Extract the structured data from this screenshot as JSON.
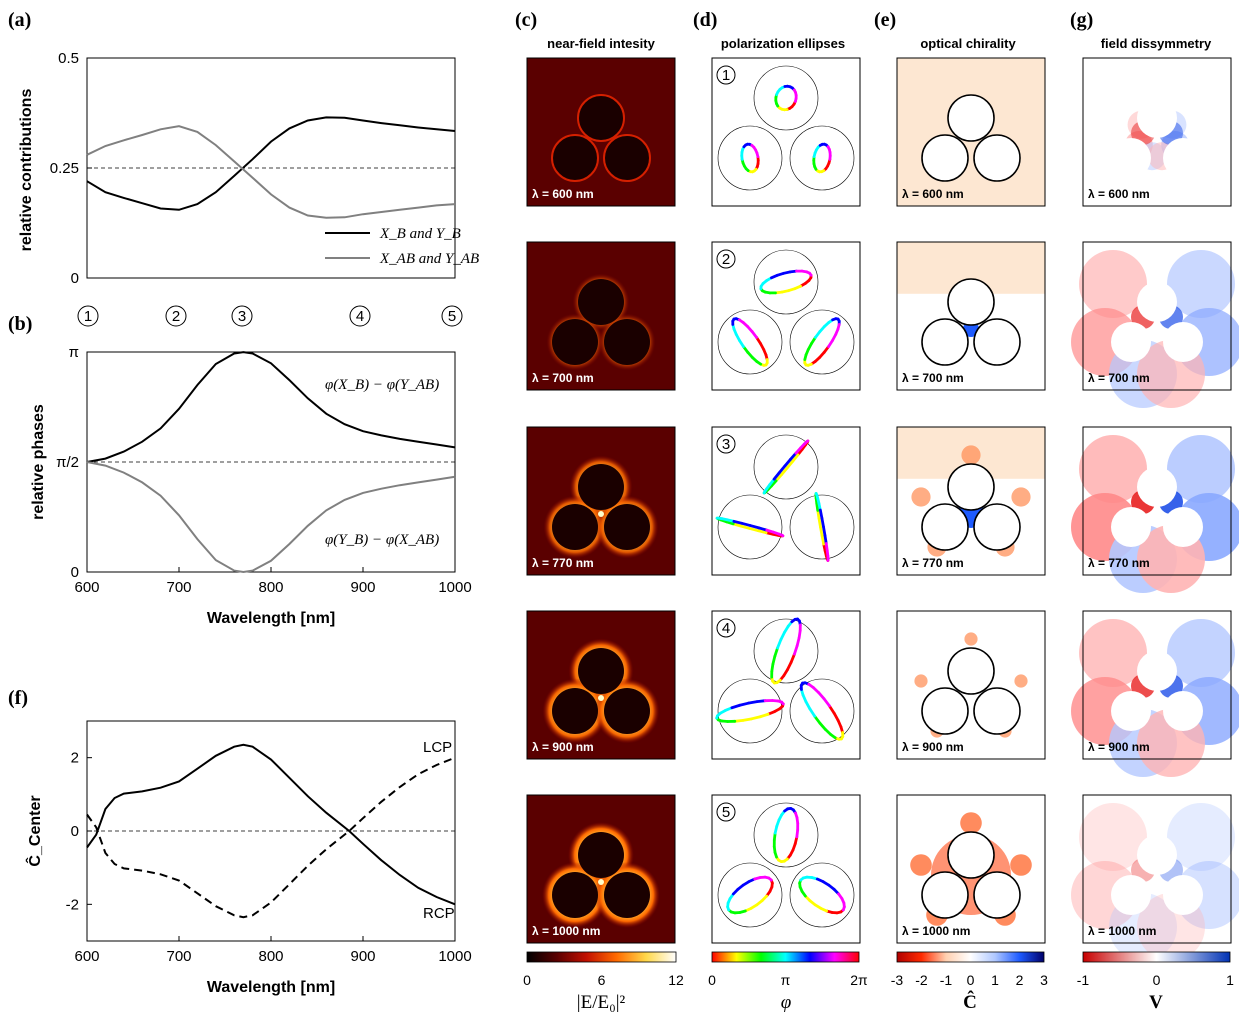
{
  "panel_labels": [
    "(a)",
    "(b)",
    "(c)",
    "(d)",
    "(e)",
    "(g)",
    "(f)"
  ],
  "column_titles": {
    "c": "near-field intesity",
    "d": "polarization ellipses",
    "e": "optical chirality",
    "g": "field dissymmetry"
  },
  "row_markers": [
    "1",
    "2",
    "3",
    "4",
    "5"
  ],
  "wavelength_labels": [
    "λ = 600 nm",
    "λ = 700 nm",
    "λ = 770 nm",
    "λ = 900 nm",
    "λ = 1000 nm"
  ],
  "colorbars": {
    "c": {
      "ticks": [
        "0",
        "6",
        "12"
      ],
      "label": "|E/E₀|²",
      "colors": [
        "#000000",
        "#5a0000",
        "#c21000",
        "#ff6a00",
        "#ffd84a",
        "#ffffff"
      ]
    },
    "d": {
      "ticks": [
        "0",
        "π",
        "2π"
      ],
      "label": "φ",
      "colors": [
        "#ff0000",
        "#ffff00",
        "#00ff00",
        "#00ffff",
        "#0000ff",
        "#ff00ff",
        "#ff0000"
      ]
    },
    "e": {
      "ticks": [
        "-3",
        "-2",
        "-1",
        "0",
        "1",
        "2",
        "3"
      ],
      "label": "Ĉ",
      "colors": [
        "#b00000",
        "#ff2a00",
        "#ffd0b0",
        "#ffffff",
        "#b0c8ff",
        "#1e5bff",
        "#00006a"
      ]
    },
    "g": {
      "ticks": [
        "-1",
        "0",
        "1"
      ],
      "label": "V",
      "colors": [
        "#c80000",
        "#ffffff",
        "#0032b4"
      ]
    }
  },
  "chart_data": [
    {
      "id": "a",
      "type": "line",
      "ylabel": "relative contributions",
      "xlim": [
        600,
        1000
      ],
      "ylim": [
        0,
        0.5
      ],
      "yticks": [
        "0",
        "0.25",
        "0.5"
      ],
      "reference_line": 0.25,
      "x": [
        600,
        620,
        640,
        660,
        680,
        700,
        720,
        740,
        760,
        780,
        800,
        820,
        840,
        860,
        880,
        900,
        920,
        940,
        960,
        980,
        1000
      ],
      "series": [
        {
          "name": "X_B and Y_B",
          "color": "#000000",
          "values": [
            0.22,
            0.195,
            0.182,
            0.17,
            0.158,
            0.155,
            0.168,
            0.195,
            0.232,
            0.27,
            0.31,
            0.34,
            0.358,
            0.365,
            0.364,
            0.358,
            0.352,
            0.347,
            0.342,
            0.338,
            0.334
          ]
        },
        {
          "name": "X_AB and Y_AB",
          "color": "#808080",
          "values": [
            0.28,
            0.3,
            0.313,
            0.325,
            0.338,
            0.345,
            0.332,
            0.302,
            0.265,
            0.228,
            0.19,
            0.16,
            0.142,
            0.137,
            0.138,
            0.145,
            0.15,
            0.155,
            0.16,
            0.165,
            0.168
          ]
        }
      ],
      "legend": [
        "X_B and Y_B",
        "X_AB and Y_AB"
      ],
      "markers": [
        {
          "label": "1",
          "x": 600
        },
        {
          "label": "2",
          "x": 700
        },
        {
          "label": "3",
          "x": 770
        },
        {
          "label": "4",
          "x": 900
        },
        {
          "label": "5",
          "x": 1000
        }
      ]
    },
    {
      "id": "b",
      "type": "line",
      "ylabel": "relative phases",
      "xlabel": "Wavelength [nm]",
      "xlim": [
        600,
        1000
      ],
      "xticks": [
        "600",
        "700",
        "800",
        "900",
        "1000"
      ],
      "ylim": [
        0,
        3.1416
      ],
      "yticks": [
        "0",
        "π/2",
        "π"
      ],
      "reference_line": 1.5708,
      "x": [
        600,
        620,
        640,
        660,
        680,
        700,
        720,
        740,
        760,
        770,
        780,
        800,
        820,
        840,
        860,
        880,
        900,
        920,
        940,
        960,
        980,
        1000
      ],
      "series": [
        {
          "name": "φ(X_B) − φ(Y_AB)",
          "color": "#000000",
          "values": [
            1.571,
            1.62,
            1.72,
            1.86,
            2.05,
            2.33,
            2.67,
            2.97,
            3.12,
            3.14,
            3.12,
            2.98,
            2.74,
            2.48,
            2.26,
            2.11,
            2.01,
            1.95,
            1.9,
            1.86,
            1.82,
            1.78
          ]
        },
        {
          "name": "φ(Y_B) − φ(X_AB)",
          "color": "#808080",
          "values": [
            1.571,
            1.52,
            1.42,
            1.28,
            1.09,
            0.81,
            0.47,
            0.17,
            0.02,
            0.0,
            0.02,
            0.16,
            0.4,
            0.66,
            0.88,
            1.03,
            1.13,
            1.19,
            1.24,
            1.28,
            1.32,
            1.36
          ]
        }
      ],
      "annotations": [
        "φ(X_B) − φ(Y_AB)",
        "φ(Y_B) − φ(X_AB)"
      ]
    },
    {
      "id": "f",
      "type": "line",
      "ylabel": "Ĉ_Center",
      "xlabel": "Wavelength [nm]",
      "xlim": [
        600,
        1000
      ],
      "xticks": [
        "600",
        "700",
        "800",
        "900",
        "1000"
      ],
      "ylim": [
        -3,
        3
      ],
      "yticks": [
        "-2",
        "0",
        "2"
      ],
      "reference_line": 0,
      "x": [
        600,
        610,
        620,
        630,
        640,
        660,
        680,
        700,
        720,
        740,
        760,
        770,
        780,
        800,
        820,
        840,
        860,
        885,
        900,
        920,
        940,
        960,
        980,
        1000
      ],
      "series": [
        {
          "name": "LCP",
          "style": "solid",
          "values": [
            -0.45,
            -0.1,
            0.6,
            0.9,
            1.02,
            1.08,
            1.18,
            1.35,
            1.7,
            2.05,
            2.3,
            2.35,
            2.3,
            1.95,
            1.45,
            0.95,
            0.5,
            0.0,
            -0.35,
            -0.8,
            -1.2,
            -1.55,
            -1.8,
            -2.0
          ]
        },
        {
          "name": "RCP",
          "style": "dashed",
          "values": [
            0.45,
            0.1,
            -0.6,
            -0.9,
            -1.02,
            -1.08,
            -1.18,
            -1.35,
            -1.7,
            -2.05,
            -2.3,
            -2.35,
            -2.3,
            -1.95,
            -1.45,
            -0.95,
            -0.5,
            0.0,
            0.35,
            0.8,
            1.2,
            1.55,
            1.8,
            2.0
          ]
        }
      ],
      "labels": [
        "LCP",
        "RCP"
      ]
    }
  ]
}
